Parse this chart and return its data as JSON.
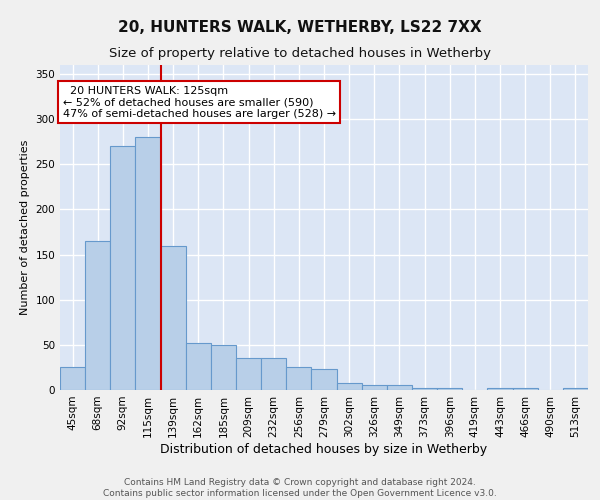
{
  "title": "20, HUNTERS WALK, WETHERBY, LS22 7XX",
  "subtitle": "Size of property relative to detached houses in Wetherby",
  "xlabel": "Distribution of detached houses by size in Wetherby",
  "ylabel": "Number of detached properties",
  "categories": [
    "45sqm",
    "68sqm",
    "92sqm",
    "115sqm",
    "139sqm",
    "162sqm",
    "185sqm",
    "209sqm",
    "232sqm",
    "256sqm",
    "279sqm",
    "302sqm",
    "326sqm",
    "349sqm",
    "373sqm",
    "396sqm",
    "419sqm",
    "443sqm",
    "466sqm",
    "490sqm",
    "513sqm"
  ],
  "values": [
    25,
    165,
    270,
    280,
    160,
    52,
    50,
    35,
    35,
    25,
    23,
    8,
    5,
    5,
    2,
    2,
    0,
    2,
    2,
    0,
    2
  ],
  "bar_color": "#b8cfe8",
  "bar_edge_color": "#6699cc",
  "background_color": "#dce6f5",
  "grid_color": "#ffffff",
  "vline_x": 3.5,
  "vline_color": "#cc0000",
  "annotation_text": "  20 HUNTERS WALK: 125sqm\n← 52% of detached houses are smaller (590)\n47% of semi-detached houses are larger (528) →",
  "annotation_box_color": "#ffffff",
  "annotation_box_edge_color": "#cc0000",
  "ylim": [
    0,
    360
  ],
  "yticks": [
    0,
    50,
    100,
    150,
    200,
    250,
    300,
    350
  ],
  "footer_text": "Contains HM Land Registry data © Crown copyright and database right 2024.\nContains public sector information licensed under the Open Government Licence v3.0.",
  "title_fontsize": 11,
  "subtitle_fontsize": 9.5,
  "xlabel_fontsize": 9,
  "ylabel_fontsize": 8,
  "tick_fontsize": 7.5,
  "annotation_fontsize": 8,
  "footer_fontsize": 6.5
}
